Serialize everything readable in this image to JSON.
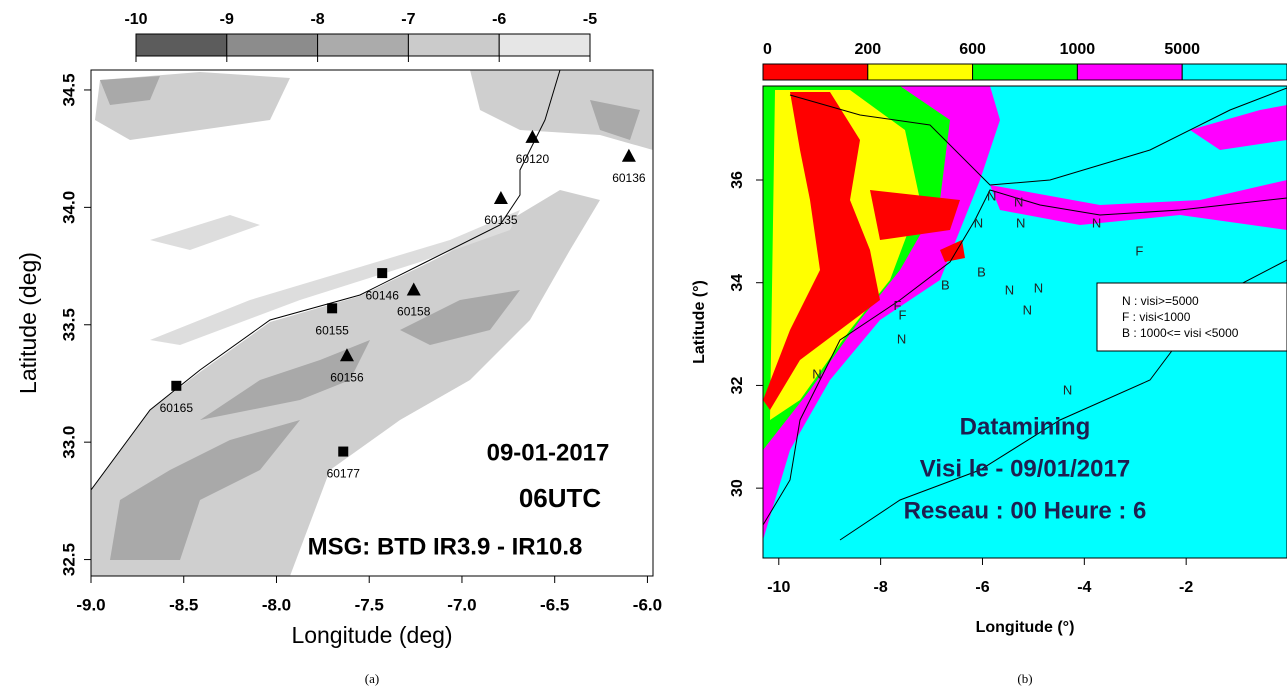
{
  "panel_a": {
    "colorbar": {
      "ticks": [
        -10,
        -9,
        -8,
        -7,
        -6,
        -5
      ],
      "colors": [
        "#5c5c5c",
        "#8c8c8c",
        "#ababab",
        "#cbcbcb",
        "#e6e6e6"
      ]
    },
    "xlim": [
      -9.0,
      -5.97
    ],
    "ylim": [
      32.43,
      34.585
    ],
    "xticks": [
      {
        "value": -9,
        "label": "-9.0"
      },
      {
        "value": -8.5,
        "label": "-8.5"
      },
      {
        "value": -8,
        "label": "-8.0"
      },
      {
        "value": -7.5,
        "label": "-7.5"
      },
      {
        "value": -7,
        "label": "-7.0"
      },
      {
        "value": -6.5,
        "label": "-6.5"
      },
      {
        "value": -6,
        "label": "-6.0"
      }
    ],
    "yticks": [
      {
        "value": 32.5,
        "label": "32.5"
      },
      {
        "value": 33,
        "label": "33.0"
      },
      {
        "value": 33.5,
        "label": "33.5"
      },
      {
        "value": 34,
        "label": "34.0"
      },
      {
        "value": 34.5,
        "label": "34.5"
      }
    ],
    "xlabel": "Longitude (deg)",
    "ylabel": "Latitude (deg)",
    "stations": [
      {
        "name": "60120",
        "marker": "triangle",
        "lon": -6.62,
        "lat": 34.3
      },
      {
        "name": "60136",
        "marker": "triangle",
        "lon": -6.1,
        "lat": 34.22
      },
      {
        "name": "60135",
        "marker": "triangle",
        "lon": -6.79,
        "lat": 34.04
      },
      {
        "name": "60146",
        "marker": "square",
        "lon": -7.43,
        "lat": 33.72
      },
      {
        "name": "60158",
        "marker": "triangle",
        "lon": -7.26,
        "lat": 33.65
      },
      {
        "name": "60155",
        "marker": "square",
        "lon": -7.7,
        "lat": 33.57
      },
      {
        "name": "60156",
        "marker": "triangle",
        "lon": -7.62,
        "lat": 33.37
      },
      {
        "name": "60165",
        "marker": "square",
        "lon": -8.54,
        "lat": 33.24
      },
      {
        "name": "60177",
        "marker": "square",
        "lon": -7.64,
        "lat": 32.96
      }
    ],
    "annotations": [
      "09-01-2017",
      "06UTC",
      "MSG: BTD IR3.9 - IR10.8"
    ],
    "caption": "(a)"
  },
  "panel_b": {
    "colorbar": {
      "bounds": [
        0,
        200,
        600,
        1000,
        5000
      ],
      "colors": [
        "#ff0000",
        "#ffff00",
        "#00ff00",
        "#ff00ff",
        "#00ffff"
      ]
    },
    "xlim": [
      -10.31,
      -0.02
    ],
    "ylim": [
      28.64,
      37.83
    ],
    "xticks": [
      -10,
      -8,
      -6,
      -4,
      -2
    ],
    "yticks": [
      30,
      32,
      34,
      36
    ],
    "xlabel": "Longitude (°)",
    "ylabel": "Latitude (°)",
    "letters": [
      {
        "text": "N",
        "lon": -5.82,
        "lat": 35.67
      },
      {
        "text": "N",
        "lon": -5.29,
        "lat": 35.55
      },
      {
        "text": "N",
        "lon": -5.25,
        "lat": 35.14
      },
      {
        "text": "N",
        "lon": -6.08,
        "lat": 35.14
      },
      {
        "text": "N",
        "lon": -3.76,
        "lat": 35.14
      },
      {
        "text": "F",
        "lon": -2.92,
        "lat": 34.6
      },
      {
        "text": "B",
        "lon": -6.02,
        "lat": 34.19
      },
      {
        "text": "B",
        "lon": -6.73,
        "lat": 33.93
      },
      {
        "text": "N",
        "lon": -5.47,
        "lat": 33.84
      },
      {
        "text": "N",
        "lon": -4.9,
        "lat": 33.88
      },
      {
        "text": "N",
        "lon": -5.12,
        "lat": 33.45
      },
      {
        "text": "F",
        "lon": -7.67,
        "lat": 33.54
      },
      {
        "text": "F",
        "lon": -7.57,
        "lat": 33.35
      },
      {
        "text": "N",
        "lon": -7.59,
        "lat": 32.88
      },
      {
        "text": "N",
        "lon": -9.25,
        "lat": 32.2
      },
      {
        "text": "N",
        "lon": -4.33,
        "lat": 31.89
      }
    ],
    "legend": [
      "N : visi>=5000",
      "F : visi<1000",
      "B :  1000<= visi <5000"
    ],
    "titles": [
      "Datamining",
      "Visi le - 09/01/2017",
      "Reseau : 00 Heure : 6"
    ],
    "caption": "(b)"
  }
}
